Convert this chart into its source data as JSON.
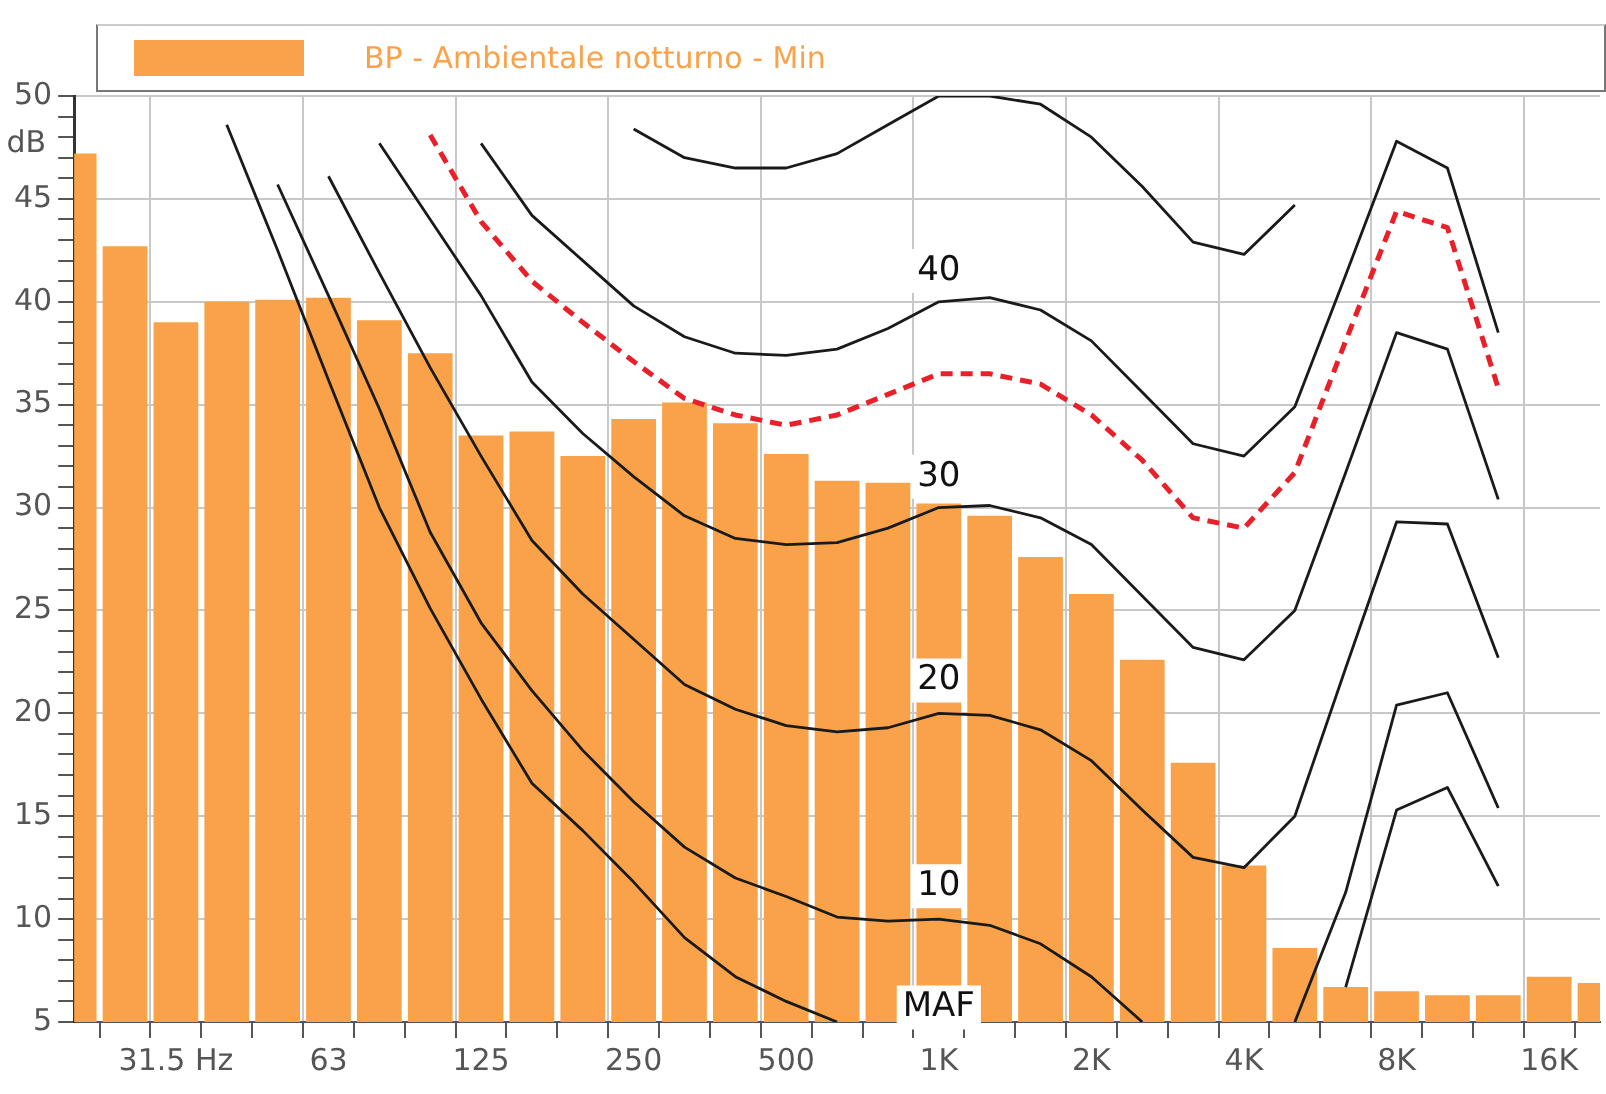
{
  "chart_data": {
    "type": "bar",
    "ylabel": "dB",
    "legend": "top left",
    "grid": true,
    "marker": "none",
    "categories": [
      null,
      null,
      "31.5 Hz",
      null,
      null,
      "63",
      null,
      null,
      "125",
      null,
      null,
      "250",
      null,
      null,
      "500",
      null,
      null,
      "1K",
      null,
      null,
      "2K",
      null,
      null,
      "4K",
      null,
      null,
      "8K",
      null,
      null,
      "16K",
      null
    ],
    "ylim": [
      5,
      50
    ],
    "yticks": [
      5,
      {
        "value": 6,
        "label": null
      },
      {
        "value": 7,
        "label": null
      },
      {
        "value": 8,
        "label": null
      },
      {
        "value": 9,
        "label": null
      },
      10,
      {
        "value": 11,
        "label": null
      },
      {
        "value": 12,
        "label": null
      },
      {
        "value": 13,
        "label": null
      },
      {
        "value": 14,
        "label": null
      },
      15,
      {
        "value": 16,
        "label": null
      },
      {
        "value": 17,
        "label": null
      },
      {
        "value": 18,
        "label": null
      },
      {
        "value": 19,
        "label": null
      },
      20,
      {
        "value": 21,
        "label": null
      },
      {
        "value": 22,
        "label": null
      },
      {
        "value": 23,
        "label": null
      },
      {
        "value": 24,
        "label": null
      },
      25,
      {
        "value": 26,
        "label": null
      },
      {
        "value": 27,
        "label": null
      },
      {
        "value": 28,
        "label": null
      },
      {
        "value": 29,
        "label": null
      },
      30,
      {
        "value": 31,
        "label": null
      },
      {
        "value": 32,
        "label": null
      },
      {
        "value": 33,
        "label": null
      },
      {
        "value": 34,
        "label": null
      },
      35,
      {
        "value": 36,
        "label": null
      },
      {
        "value": 37,
        "label": null
      },
      {
        "value": 38,
        "label": null
      },
      {
        "value": 39,
        "label": null
      },
      40,
      {
        "value": 41,
        "label": null
      },
      {
        "value": 42,
        "label": null
      },
      {
        "value": 43,
        "label": null
      },
      {
        "value": 44,
        "label": null
      },
      45,
      {
        "value": 46,
        "label": null
      },
      {
        "value": 47,
        "label": null
      },
      {
        "value": 48,
        "label": null
      },
      {
        "value": 49,
        "label": null
      },
      50
    ],
    "series": [
      {
        "name": "BP - Ambientale notturno - Min",
        "color": "#f9a24a",
        "values": [
          47.2,
          42.7,
          39.0,
          40.0,
          40.1,
          40.2,
          39.1,
          37.5,
          33.5,
          33.7,
          32.5,
          34.3,
          35.1,
          34.1,
          32.6,
          31.3,
          31.2,
          30.2,
          29.6,
          27.6,
          25.8,
          22.6,
          17.6,
          12.6,
          8.6,
          6.7,
          6.5,
          6.3,
          6.3,
          7.2,
          6.9
        ]
      },
      {
        "type": "line",
        "color": "#1a1a1a",
        "values": [
          null,
          null,
          null,
          48.6,
          42.5,
          36.2,
          30.0,
          25.1,
          20.7,
          16.6,
          14.3,
          11.8,
          9.1,
          7.2,
          6.0,
          5.0,
          null,
          null,
          null,
          null,
          null,
          null,
          null,
          null,
          null,
          6.7,
          15.3,
          16.4,
          11.6,
          null,
          null
        ]
      },
      {
        "type": "line",
        "color": "#1a1a1a",
        "values": [
          null,
          null,
          null,
          null,
          45.7,
          40.3,
          34.8,
          28.8,
          24.4,
          21.1,
          18.2,
          15.7,
          13.5,
          12.0,
          11.1,
          10.1,
          9.9,
          10.0,
          9.7,
          8.8,
          7.2,
          5.0,
          null,
          null,
          5.0,
          11.3,
          20.4,
          21.0,
          15.4,
          null,
          null
        ]
      },
      {
        "type": "line",
        "color": "#1a1a1a",
        "values": [
          null,
          null,
          null,
          null,
          null,
          46.1,
          41.4,
          36.8,
          32.5,
          28.4,
          25.8,
          23.6,
          21.4,
          20.2,
          19.4,
          19.1,
          19.3,
          20.0,
          19.9,
          19.2,
          17.7,
          15.3,
          13.0,
          12.5,
          15.0,
          22.2,
          29.3,
          29.2,
          22.7,
          null,
          null
        ]
      },
      {
        "type": "line",
        "color": "#1a1a1a",
        "values": [
          null,
          null,
          null,
          null,
          null,
          null,
          47.7,
          44.0,
          40.3,
          36.1,
          33.6,
          31.5,
          29.6,
          28.5,
          28.2,
          28.3,
          29.0,
          30.0,
          30.1,
          29.5,
          28.2,
          25.7,
          23.2,
          22.6,
          25.0,
          31.7,
          38.5,
          37.7,
          30.4,
          null,
          null
        ]
      },
      {
        "type": "line",
        "color": "#e8202a",
        "line_style": "dashed",
        "values": [
          null,
          null,
          null,
          null,
          null,
          null,
          null,
          48.1,
          43.9,
          41.0,
          39.0,
          37.1,
          35.3,
          34.5,
          34.0,
          34.5,
          35.5,
          36.5,
          36.5,
          36.0,
          34.5,
          32.3,
          29.5,
          29.0,
          31.7,
          38.1,
          44.4,
          43.6,
          35.8,
          null,
          null
        ]
      },
      {
        "type": "line",
        "color": "#1a1a1a",
        "values": [
          null,
          null,
          null,
          null,
          null,
          null,
          null,
          null,
          47.7,
          44.2,
          42.0,
          39.8,
          38.3,
          37.5,
          37.4,
          37.7,
          38.7,
          40.0,
          40.2,
          39.6,
          38.1,
          35.6,
          33.1,
          32.5,
          34.9,
          41.3,
          47.8,
          46.5,
          38.5,
          null,
          null
        ]
      },
      {
        "type": "line",
        "color": "#1a1a1a",
        "values": [
          null,
          null,
          null,
          null,
          null,
          null,
          null,
          null,
          null,
          null,
          null,
          48.4,
          47.0,
          46.5,
          46.5,
          47.2,
          48.6,
          50.0,
          50.0,
          49.6,
          48.0,
          45.6,
          42.9,
          42.3,
          44.7,
          null,
          null,
          null,
          null,
          null,
          null
        ]
      }
    ],
    "annotations": [
      {
        "text": "40",
        "x": "1K",
        "y": 41.5
      },
      {
        "text": "30",
        "x": "1K",
        "y": 31.5
      },
      {
        "text": "20",
        "x": "1K",
        "y": 21.6
      },
      {
        "text": "10",
        "x": "1K",
        "y": 11.6
      },
      {
        "text": "MAF",
        "x": "1K",
        "y": 5.7
      }
    ]
  }
}
